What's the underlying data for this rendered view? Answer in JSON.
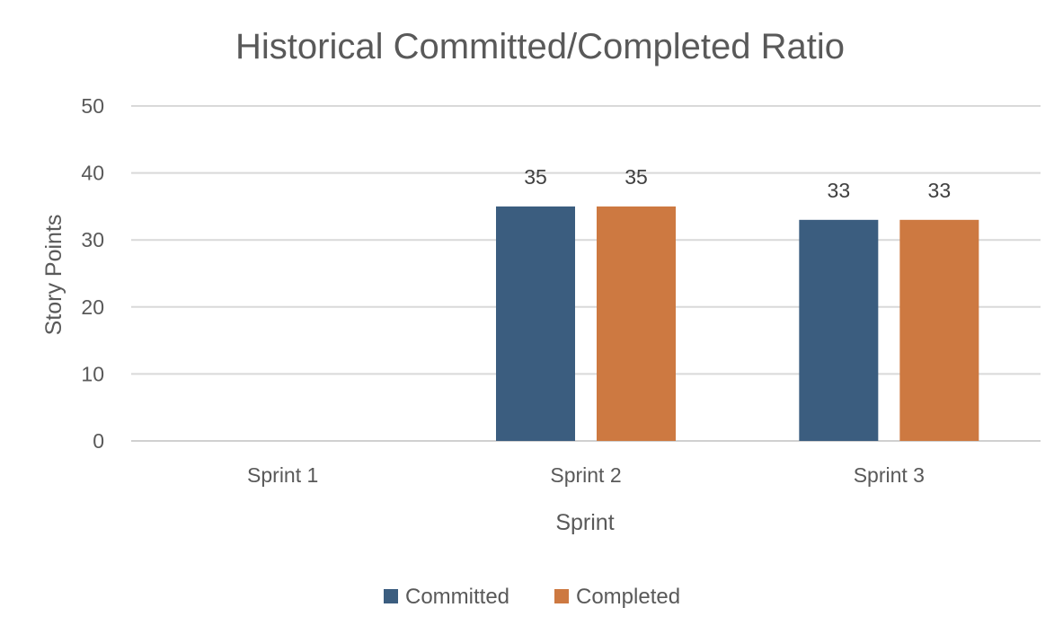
{
  "chart_data": {
    "type": "bar",
    "title": "Historical Committed/Completed Ratio",
    "xlabel": "Sprint",
    "ylabel": "Story Points",
    "categories": [
      "Sprint 1",
      "Sprint 2",
      "Sprint 3"
    ],
    "series": [
      {
        "name": "Committed",
        "values": [
          null,
          35,
          33
        ],
        "color": "#3b5d7f"
      },
      {
        "name": "Completed",
        "values": [
          null,
          35,
          33
        ],
        "color": "#cd7941"
      }
    ],
    "ylim": [
      0,
      50
    ],
    "yticks": [
      "0",
      "10",
      "20",
      "30",
      "40",
      "50"
    ],
    "grid": true,
    "data_labels": true,
    "legend_position": "bottom"
  }
}
